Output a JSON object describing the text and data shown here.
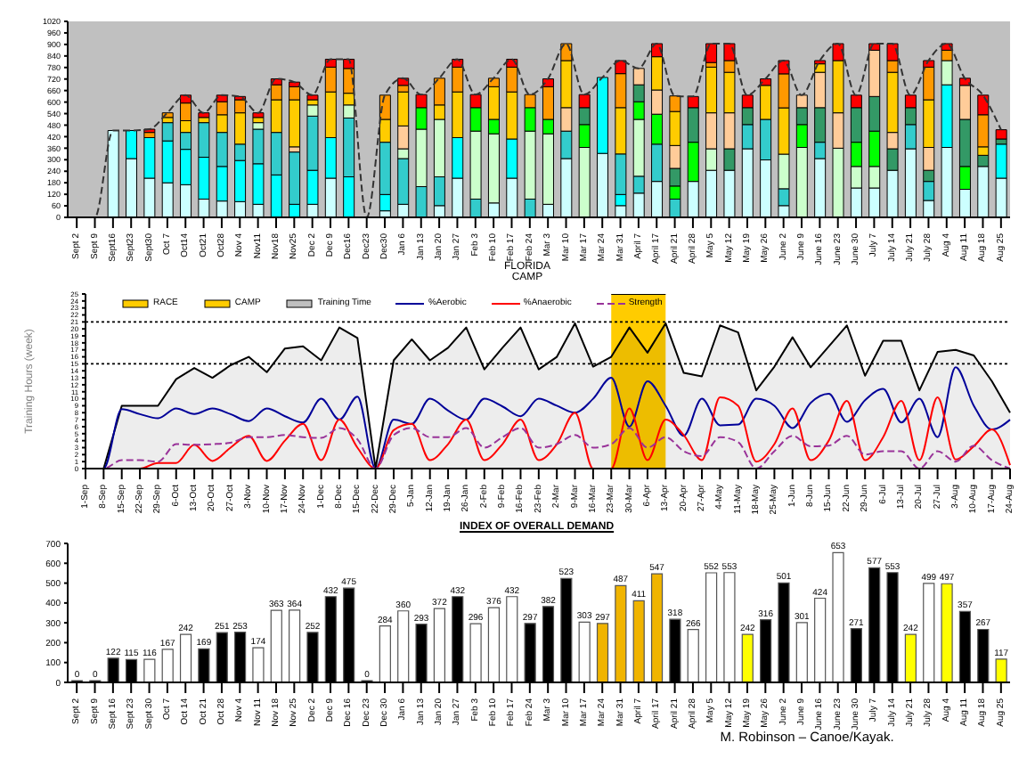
{
  "chart_data": [
    {
      "type": "bar",
      "stacked": true,
      "annotations": [
        "FLORIDA CAMP"
      ],
      "categories": [
        "Sept 2",
        "Sept 9",
        "Sept16",
        "Sept23",
        "Sept30",
        "Oct 7",
        "Oct14",
        "Oct21",
        "Oct28",
        "Nov 4",
        "Nov11",
        "Nov18",
        "Nov25",
        "Dec 2",
        "Dec 9",
        "Dec16",
        "Dec23",
        "Dec30",
        "Jan 6",
        "Jan 13",
        "Jan 20",
        "Jan 27",
        "Feb 3",
        "Feb 10",
        "Feb 17",
        "Feb 24",
        "Mar 3",
        "Mar 10",
        "Mar 17",
        "Mar 24",
        "Mar 31",
        "April 7",
        "April 17",
        "April 21",
        "April 28",
        "May 5",
        "May 12",
        "May 19",
        "May 26",
        "June 2",
        "June 9",
        "June 16",
        "June 23",
        "June 30",
        "July 7",
        "July 14",
        "July 21",
        "July 28",
        "Aug 4",
        "Aug 11",
        "Aug 18",
        "Aug 25"
      ],
      "ylim": [
        0,
        1020
      ],
      "yticks": [
        0,
        60,
        120,
        180,
        240,
        300,
        360,
        420,
        480,
        540,
        600,
        660,
        720,
        780,
        840,
        900,
        960,
        1020
      ],
      "series": [
        {
          "color": "#ccffff",
          "values": [
            null,
            null,
            452,
            306,
            204,
            180,
            170,
            95,
            85,
            82,
            68,
            null,
            null,
            68,
            204,
            null,
            null,
            34,
            68,
            null,
            61,
            204,
            null,
            75,
            204,
            null,
            68,
            306,
            null,
            333,
            61,
            126,
            187,
            null,
            187,
            245,
            245,
            357,
            299,
            61,
            null,
            306,
            null,
            153,
            153,
            245,
            357,
            88,
            364,
            146,
            265,
            204
          ]
        },
        {
          "color": "#00ffff",
          "values": [
            null,
            null,
            null,
            146,
            211,
            218,
            184,
            218,
            180,
            214,
            211,
            221,
            68,
            177,
            211,
            211,
            null,
            85,
            null,
            null,
            null,
            211,
            null,
            null,
            204,
            null,
            null,
            null,
            null,
            395,
            58,
            null,
            null,
            null,
            null,
            null,
            null,
            null,
            null,
            null,
            null,
            null,
            null,
            null,
            null,
            null,
            null,
            null,
            326,
            null,
            null,
            177
          ]
        },
        {
          "color": "#33cccc",
          "values": [
            null,
            null,
            null,
            null,
            null,
            95,
            88,
            180,
            177,
            85,
            180,
            221,
            272,
            282,
            null,
            306,
            null,
            272,
            238,
            160,
            150,
            null,
            95,
            null,
            null,
            95,
            null,
            143,
            null,
            null,
            211,
            88,
            194,
            95,
            null,
            null,
            null,
            126,
            211,
            88,
            null,
            85,
            null,
            null,
            null,
            null,
            126,
            99,
            null,
            null,
            null,
            null
          ]
        },
        {
          "color": "#ccffcc",
          "values": [
            null,
            null,
            null,
            null,
            null,
            null,
            null,
            null,
            null,
            null,
            34,
            null,
            null,
            58,
            null,
            68,
            null,
            null,
            51,
            299,
            299,
            null,
            354,
            360,
            null,
            354,
            367,
            null,
            364,
            null,
            null,
            296,
            null,
            null,
            null,
            112,
            null,
            null,
            null,
            180,
            364,
            null,
            360,
            112,
            112,
            null,
            null,
            null,
            126,
            null,
            null,
            null
          ]
        },
        {
          "color": "#00ff00",
          "values": [
            null,
            null,
            null,
            null,
            null,
            null,
            null,
            null,
            null,
            null,
            null,
            null,
            null,
            null,
            null,
            null,
            null,
            null,
            null,
            112,
            null,
            null,
            122,
            75,
            null,
            122,
            75,
            null,
            119,
            null,
            null,
            92,
            156,
            68,
            204,
            null,
            null,
            null,
            null,
            null,
            119,
            null,
            null,
            126,
            184,
            null,
            null,
            null,
            null,
            119,
            null,
            null
          ]
        },
        {
          "color": "#339966",
          "values": [
            null,
            null,
            null,
            null,
            null,
            null,
            null,
            null,
            null,
            null,
            null,
            null,
            null,
            null,
            null,
            null,
            null,
            null,
            null,
            null,
            null,
            null,
            null,
            null,
            null,
            null,
            null,
            null,
            88,
            null,
            null,
            88,
            null,
            92,
            180,
            null,
            112,
            88,
            null,
            null,
            88,
            180,
            null,
            180,
            180,
            112,
            88,
            58,
            null,
            245,
            58,
            27
          ]
        },
        {
          "color": "#ffcc99",
          "values": [
            null,
            null,
            null,
            null,
            null,
            null,
            null,
            null,
            null,
            null,
            null,
            null,
            27,
            null,
            null,
            null,
            null,
            null,
            119,
            null,
            null,
            null,
            null,
            null,
            null,
            null,
            null,
            122,
            null,
            null,
            null,
            85,
            126,
            119,
            null,
            187,
            187,
            null,
            null,
            null,
            65,
            184,
            184,
            null,
            241,
            85,
            null,
            119,
            null,
            177,
            null,
            null
          ]
        },
        {
          "color": "#ffcc00",
          "values": [
            null,
            null,
            null,
            null,
            null,
            27,
            61,
            27,
            92,
            163,
            27,
            170,
            245,
            27,
            238,
            61,
            null,
            119,
            177,
            null,
            75,
            238,
            null,
            170,
            245,
            null,
            null,
            245,
            null,
            null,
            241,
            null,
            173,
            177,
            null,
            238,
            211,
            null,
            177,
            241,
            null,
            44,
            272,
            null,
            null,
            313,
            null,
            248,
            null,
            null,
            44,
            null
          ]
        },
        {
          "color": "#ff9900",
          "values": [
            null,
            null,
            null,
            null,
            27,
            24,
            92,
            null,
            68,
            68,
            null,
            78,
            68,
            null,
            129,
            129,
            null,
            126,
            34,
            null,
            139,
            129,
            null,
            44,
            129,
            68,
            170,
            88,
            null,
            null,
            177,
            null,
            null,
            81,
            null,
            24,
            61,
            null,
            null,
            177,
            null,
            null,
            null,
            null,
            null,
            61,
            null,
            170,
            54,
            null,
            167,
            null
          ]
        },
        {
          "color": "#ff0000",
          "values": [
            null,
            null,
            null,
            null,
            17,
            null,
            41,
            24,
            34,
            17,
            24,
            31,
            24,
            24,
            41,
            48,
            null,
            null,
            37,
            68,
            null,
            41,
            68,
            null,
            41,
            null,
            41,
            null,
            68,
            null,
            68,
            null,
            68,
            null,
            58,
            98,
            88,
            65,
            34,
            69,
            null,
            17,
            88,
            65,
            34,
            88,
            65,
            34,
            34,
            37,
            102,
            48
          ]
        },
        {
          "type": "line",
          "line_style": "dashed",
          "color": "#333333",
          "values": [
            0,
            0,
            452,
            452,
            459,
            544,
            636,
            544,
            636,
            629,
            544,
            721,
            704,
            636,
            823,
            823,
            0,
            636,
            724,
            639,
            724,
            823,
            639,
            724,
            823,
            639,
            721,
            904,
            639,
            728,
            816,
            775,
            904,
            632,
            629,
            904,
            904,
            636,
            721,
            816,
            636,
            816,
            904,
            636,
            904,
            904,
            636,
            816,
            904,
            724,
            636,
            456
          ]
        }
      ]
    },
    {
      "type": "line",
      "ylabel": "Training Hours (week)",
      "legend": "top left",
      "categories": [
        "1-Sep",
        "8-Sep",
        "15-Sep",
        "22-Sep",
        "29-Sep",
        "6-Oct",
        "13-Oct",
        "20-Oct",
        "27-Oct",
        "3-Nov",
        "10-Nov",
        "17-Nov",
        "24-Nov",
        "1-Dec",
        "8-Dec",
        "15-Dec",
        "22-Dec",
        "29-Dec",
        "5-Jan",
        "12-Jan",
        "19-Jan",
        "26-Jan",
        "2-Feb",
        "9-Feb",
        "16-Feb",
        "23-Feb",
        "2-Mar",
        "9-Mar",
        "16-Mar",
        "23-Mar",
        "30-Mar",
        "6-Apr",
        "13-Apr",
        "20-Apr",
        "27-Apr",
        "4-May",
        "11-May",
        "18-May",
        "25-May",
        "1-Jun",
        "8-Jun",
        "15-Jun",
        "22-Jun",
        "29-Jun",
        "6-Jul",
        "13-Jul",
        "20-Jul",
        "27-Jul",
        "3-Aug",
        "10-Aug",
        "17-Aug",
        "24-Aug"
      ],
      "ylim": [
        0,
        25
      ],
      "yticks": [
        0,
        1,
        2,
        3,
        4,
        5,
        6,
        7,
        8,
        9,
        10,
        11,
        12,
        13,
        14,
        15,
        16,
        17,
        18,
        19,
        20,
        21,
        22,
        23,
        24,
        25
      ],
      "ref_lines": [
        {
          "axis": "y",
          "value": 21,
          "line_style": "dotted"
        },
        {
          "axis": "y",
          "value": 15,
          "line_style": "dotted"
        }
      ],
      "series": [
        {
          "name": "RACE",
          "type": "area",
          "color": "#ffcc00",
          "values": [
            null,
            null,
            null,
            null,
            null,
            null,
            null,
            null,
            null,
            null,
            null,
            null,
            null,
            null,
            null,
            null,
            null,
            null,
            null,
            null,
            null,
            null,
            null,
            null,
            null,
            null,
            null,
            null,
            null,
            null,
            null,
            null,
            null,
            null,
            null,
            null,
            null,
            null,
            null,
            null,
            null,
            null,
            null,
            null,
            null,
            null,
            null,
            null,
            null,
            null,
            null,
            null
          ]
        },
        {
          "name": "CAMP",
          "type": "area",
          "color": "#ffcc00",
          "values": [
            null,
            null,
            null,
            null,
            null,
            null,
            null,
            null,
            null,
            null,
            null,
            null,
            null,
            null,
            null,
            null,
            null,
            null,
            null,
            null,
            null,
            null,
            null,
            null,
            null,
            null,
            null,
            null,
            null,
            25,
            25,
            25,
            25,
            null,
            null,
            null,
            null,
            null,
            null,
            null,
            null,
            null,
            null,
            null,
            null,
            null,
            null,
            null,
            null,
            null,
            null,
            null
          ]
        },
        {
          "name": "Training Time",
          "type": "area",
          "color": "#000000",
          "values": [
            0,
            0,
            9,
            9,
            9,
            12.8,
            14.4,
            13,
            14.8,
            16,
            13.8,
            17.2,
            17.5,
            15.5,
            20.2,
            18.7,
            0,
            15.5,
            18.5,
            15.5,
            17.3,
            20.2,
            14.2,
            17.3,
            20.2,
            14.2,
            16,
            20.8,
            14.6,
            16,
            20.2,
            16.6,
            20.8,
            13.7,
            13.2,
            20.5,
            19.5,
            11.2,
            14.6,
            18.8,
            14.5,
            17.5,
            20.5,
            13.3,
            18.3,
            18.3,
            11.2,
            16.7,
            17,
            16.2,
            12.5,
            8
          ]
        },
        {
          "name": "%Aerobic",
          "color": "#000099",
          "values": [
            0,
            0,
            8.5,
            7.8,
            7.2,
            8.6,
            7.8,
            8.6,
            7.8,
            6.8,
            8.6,
            7.5,
            6.6,
            10,
            7,
            10.3,
            0,
            7,
            6.4,
            10,
            8.3,
            7,
            10,
            8.9,
            7.5,
            10,
            9,
            8,
            10,
            13,
            6,
            12.5,
            9,
            4.7,
            10,
            6.2,
            6.3,
            10,
            9,
            5.8,
            9.4,
            10.7,
            6.7,
            9.8,
            11.4,
            6.6,
            10,
            4.5,
            14.5,
            9,
            5.6,
            7
          ]
        },
        {
          "name": "%Anaerobic",
          "color": "#ff0000",
          "values": [
            null,
            null,
            0,
            0,
            0.8,
            0.8,
            3.4,
            1.1,
            3,
            4.7,
            1.1,
            4,
            6.4,
            1.2,
            7,
            3,
            0,
            5.5,
            6.4,
            1.2,
            3.5,
            7,
            1.2,
            3.5,
            7,
            1.2,
            3.5,
            8,
            0,
            0,
            8.6,
            1.2,
            7,
            4.8,
            1.2,
            10.2,
            9,
            1,
            3.5,
            8.6,
            1.2,
            4,
            9.7,
            1.2,
            4.5,
            9.7,
            1.2,
            10.2,
            1.3,
            3.2,
            5.6,
            0.5
          ]
        },
        {
          "name": "Strength",
          "color": "#993399",
          "line_style": "dashed",
          "values": [
            0,
            0,
            1.2,
            1.2,
            1,
            3.5,
            3.4,
            3.5,
            3.7,
            4.5,
            4.5,
            4.8,
            4.5,
            4.4,
            5.8,
            4.2,
            0,
            4.8,
            5.8,
            4.5,
            4.5,
            5.8,
            3,
            4.5,
            5.8,
            3,
            3.5,
            4.8,
            3,
            3.5,
            5.8,
            3,
            4.5,
            2.5,
            1.8,
            4.5,
            3.8,
            0,
            2.5,
            4.7,
            3.2,
            3.3,
            4.7,
            2,
            2.5,
            2.5,
            0,
            2.5,
            1,
            3.3,
            1.2,
            0
          ]
        }
      ]
    },
    {
      "type": "bar",
      "title": "INDEX OF OVERALL DEMAND",
      "annotations": [
        "M. Robinson – Canoe/Kayak."
      ],
      "data_labels": true,
      "categories": [
        "Sept 2",
        "Sept 9",
        "Sept 16",
        "Sept 23",
        "Sept 30",
        "Oct 7",
        "Oct 14",
        "Oct 21",
        "Oct 28",
        "Nov 4",
        "Nov 11",
        "Nov 18",
        "Nov 25",
        "Dec 2",
        "Dec 9",
        "Dec 16",
        "Dec 23",
        "Dec 30",
        "Jan 6",
        "Jan 13",
        "Jan 20",
        "Jan 27",
        "Feb 3",
        "Feb 10",
        "Feb 17",
        "Feb 24",
        "Mar 3",
        "Mar 10",
        "Mar 17",
        "Mar 24",
        "Mar 31",
        "April 7",
        "April 17",
        "April 21",
        "April 28",
        "May 5",
        "May 12",
        "May 19",
        "May 26",
        "June 2",
        "June 9",
        "June 16",
        "June 23",
        "June 30",
        "July 7",
        "July 14",
        "July 21",
        "July 28",
        "Aug 4",
        "Aug 11",
        "Aug 18",
        "Aug 25"
      ],
      "ylim": [
        0,
        700
      ],
      "yticks": [
        0,
        100,
        200,
        300,
        400,
        500,
        600,
        700
      ],
      "values": [
        0,
        0,
        122,
        115,
        116,
        167,
        242,
        169,
        251,
        253,
        174,
        363,
        364,
        252,
        432,
        475,
        0,
        284,
        360,
        293,
        372,
        432,
        296,
        376,
        432,
        297,
        382,
        523,
        303,
        297,
        487,
        411,
        547,
        318,
        266,
        552,
        553,
        242,
        316,
        501,
        301,
        424,
        653,
        271,
        577,
        553,
        242,
        499,
        497,
        357,
        267,
        117
      ],
      "colors": [
        "#000000",
        "#000000",
        "#000000",
        "#000000",
        "#ffffff",
        "#ffffff",
        "#ffffff",
        "#000000",
        "#000000",
        "#000000",
        "#ffffff",
        "#ffffff",
        "#ffffff",
        "#000000",
        "#000000",
        "#000000",
        "#000000",
        "#ffffff",
        "#ffffff",
        "#000000",
        "#ffffff",
        "#000000",
        "#ffffff",
        "#ffffff",
        "#ffffff",
        "#000000",
        "#000000",
        "#000000",
        "#ffffff",
        "#f0b400",
        "#f0b400",
        "#f0b400",
        "#f0b400",
        "#000000",
        "#ffffff",
        "#ffffff",
        "#ffffff",
        "#ffff00",
        "#000000",
        "#000000",
        "#ffffff",
        "#ffffff",
        "#ffffff",
        "#000000",
        "#000000",
        "#000000",
        "#ffff00",
        "#ffffff",
        "#ffff00",
        "#000000",
        "#000000",
        "#ffff00"
      ]
    }
  ]
}
